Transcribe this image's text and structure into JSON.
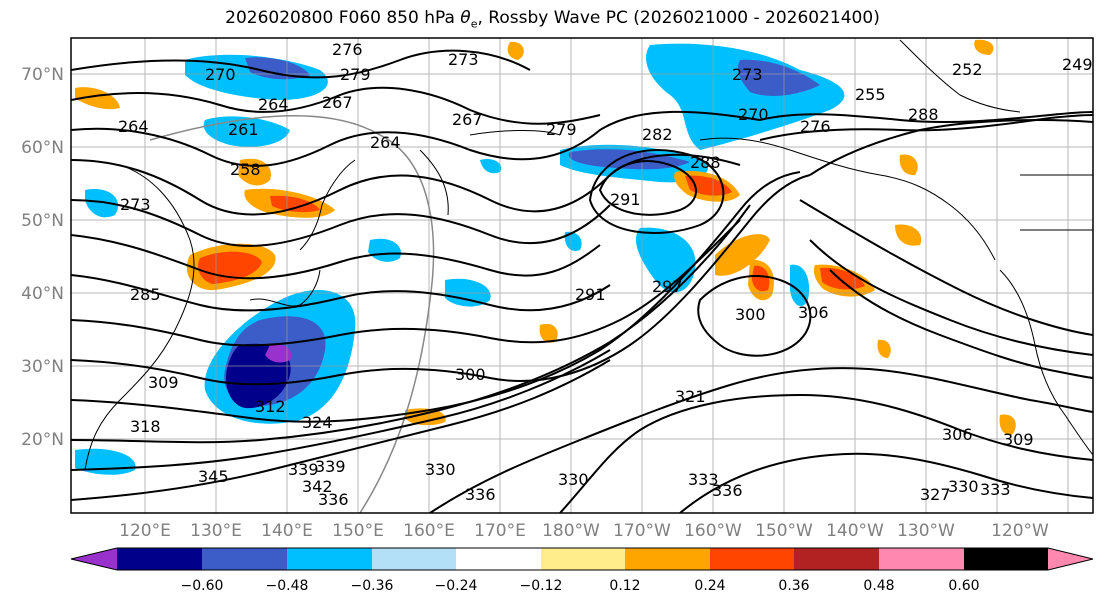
{
  "title": {
    "prefix": "2026020800 F060 850 hPa ",
    "symbol": "θ",
    "subscript": "e",
    "suffix": ", Rossby Wave PC (2026021000 - 2026021400)"
  },
  "map": {
    "lat_labels": [
      "70°N",
      "60°N",
      "50°N",
      "40°N",
      "30°N",
      "20°N"
    ],
    "lon_labels": [
      "120°E",
      "130°E",
      "140°E",
      "150°E",
      "160°E",
      "170°E",
      "180°W",
      "170°W",
      "160°W",
      "150°W",
      "140°W",
      "130°W",
      "120°W"
    ],
    "contour_labels": [
      "276",
      "273",
      "270",
      "279",
      "267",
      "264",
      "261",
      "258",
      "267",
      "264",
      "273",
      "279",
      "282",
      "288",
      "291",
      "270",
      "276",
      "255",
      "252",
      "249",
      "288",
      "297",
      "291",
      "300",
      "306",
      "309",
      "312",
      "324",
      "300",
      "330",
      "321",
      "336",
      "330",
      "333",
      "336",
      "339",
      "339",
      "345",
      "342",
      "336",
      "327",
      "330",
      "333",
      "306",
      "309",
      "318",
      "285",
      "264",
      "273"
    ]
  },
  "colorbar": {
    "ticks": [
      "−0.60",
      "−0.48",
      "−0.36",
      "−0.24",
      "−0.12",
      "0.12",
      "0.24",
      "0.36",
      "0.48",
      "0.60"
    ],
    "colors": [
      "#9932cc",
      "#00008b",
      "#3c5cc8",
      "#00bfff",
      "#b3e0f7",
      "#ffffff",
      "#ffec8b",
      "#ffa500",
      "#ff4500",
      "#b22222",
      "#ff88b0"
    ]
  }
}
